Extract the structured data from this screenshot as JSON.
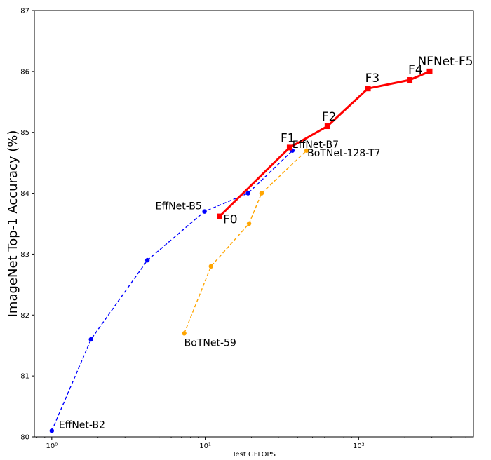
{
  "chart_data": {
    "type": "line",
    "title": "",
    "xlabel": "Test GFLOPS",
    "ylabel": "ImageNet Top-1 Accuracy (%)",
    "xscale": "log",
    "xlim": [
      0.77,
      560
    ],
    "ylim": [
      80,
      87
    ],
    "x_ticks": [
      {
        "value": 1,
        "label": "10⁰"
      },
      {
        "value": 10,
        "label": "10¹"
      },
      {
        "value": 100,
        "label": "10²"
      }
    ],
    "y_ticks": [
      80,
      81,
      82,
      83,
      84,
      85,
      86,
      87
    ],
    "grid": false,
    "legend": "none",
    "series": [
      {
        "color": "#0000ff",
        "line_style": "dashed",
        "marker": "circle",
        "x": [
          1.0,
          1.8,
          4.2,
          9.9,
          19,
          37
        ],
        "y": [
          80.1,
          81.6,
          82.9,
          83.7,
          84.0,
          84.7
        ]
      },
      {
        "color": "#ffa500",
        "line_style": "dashed",
        "marker": "circle",
        "x": [
          7.3,
          10.9,
          19.3,
          23.3,
          45.8
        ],
        "y": [
          81.7,
          82.8,
          83.5,
          84.0,
          84.7
        ]
      },
      {
        "color": "#ff0000",
        "line_style": "solid",
        "marker": "square",
        "x": [
          12.4,
          35.5,
          62.6,
          115,
          215,
          290
        ],
        "y": [
          83.62,
          84.75,
          85.1,
          85.72,
          85.86,
          86.0
        ]
      }
    ],
    "annotations": [
      {
        "text": "EffNet-B2",
        "x": 1.0,
        "y": 80.1,
        "size": 14
      },
      {
        "text": "EffNet-B5",
        "x": 9.9,
        "y": 83.7,
        "size": 14
      },
      {
        "text": "EffNet-B7",
        "x": 37,
        "y": 84.7,
        "size": 14
      },
      {
        "text": "BoTNet-59",
        "x": 7.3,
        "y": 81.7,
        "size": 14
      },
      {
        "text": "BoTNet-128-T7",
        "x": 45.8,
        "y": 84.7,
        "size": 14
      },
      {
        "text": "F0",
        "x": 12.4,
        "y": 83.62,
        "size": 17
      },
      {
        "text": "F1",
        "x": 35.5,
        "y": 84.75,
        "size": 17
      },
      {
        "text": "F2",
        "x": 62.6,
        "y": 85.1,
        "size": 17
      },
      {
        "text": "F3",
        "x": 115,
        "y": 85.72,
        "size": 17
      },
      {
        "text": "F4",
        "x": 215,
        "y": 85.86,
        "size": 17
      },
      {
        "text": "NFNet-F5",
        "x": 290,
        "y": 86.0,
        "size": 17
      }
    ]
  }
}
